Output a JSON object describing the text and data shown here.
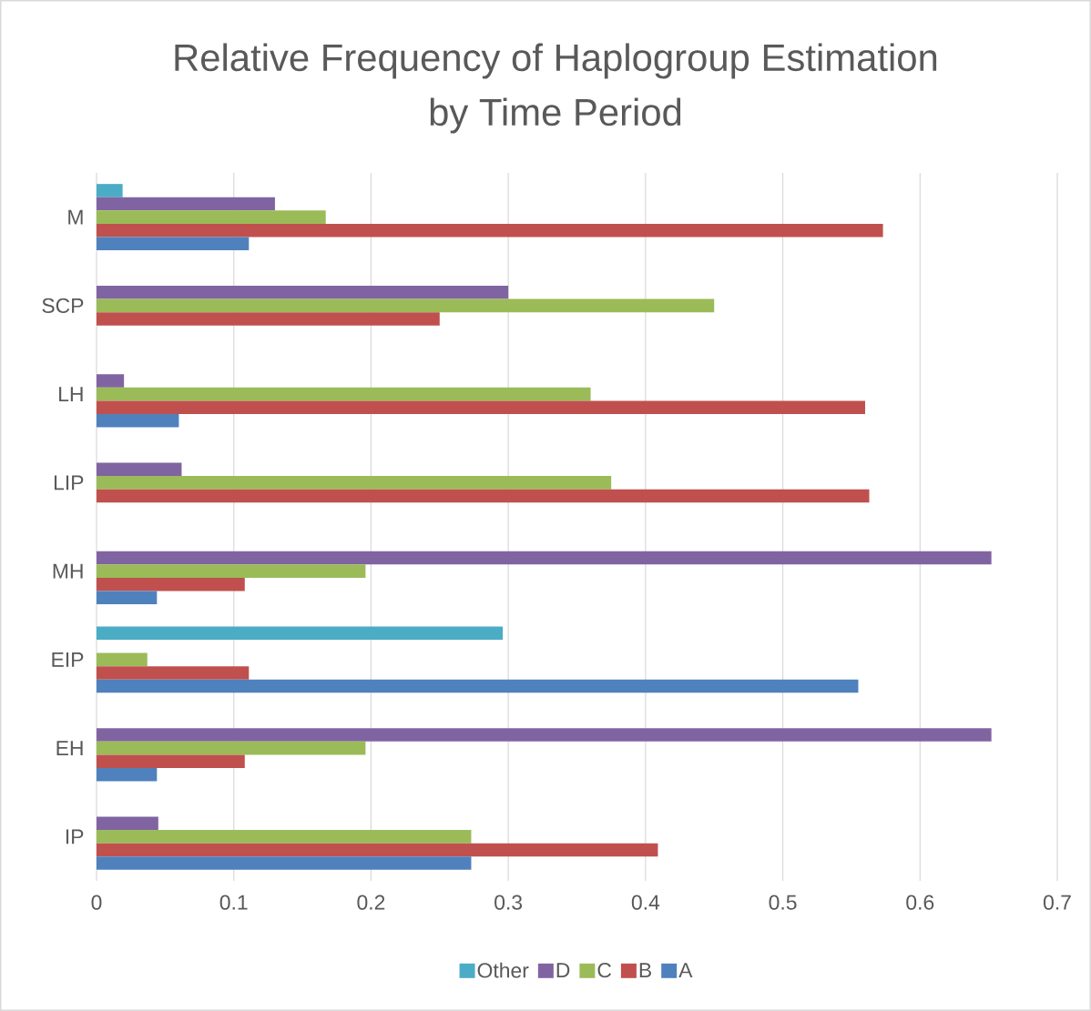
{
  "chart_data": {
    "type": "bar",
    "orientation": "horizontal",
    "title": "Relative Frequency of Haplogroup Estimation\nby Time Period",
    "categories": [
      "M",
      "SCP",
      "LH",
      "LIP",
      "MH",
      "EIP",
      "EH",
      "IP"
    ],
    "series": [
      {
        "name": "Other",
        "color": "#4bacc6",
        "values": [
          0.019,
          null,
          null,
          null,
          null,
          0.296,
          null,
          null
        ]
      },
      {
        "name": "D",
        "color": "#8064a2",
        "values": [
          0.13,
          0.3,
          0.02,
          0.062,
          0.652,
          null,
          0.652,
          0.045
        ]
      },
      {
        "name": "C",
        "color": "#9bbb59",
        "values": [
          0.167,
          0.45,
          0.36,
          0.375,
          0.196,
          0.037,
          0.196,
          0.273
        ]
      },
      {
        "name": "B",
        "color": "#c0504d",
        "values": [
          0.573,
          0.25,
          0.56,
          0.563,
          0.108,
          0.111,
          0.108,
          0.409
        ]
      },
      {
        "name": "A",
        "color": "#4f81bd",
        "values": [
          0.111,
          null,
          0.06,
          null,
          0.044,
          0.555,
          0.044,
          0.273
        ]
      }
    ],
    "xlim": [
      0,
      0.7
    ],
    "xticks": [
      0,
      0.1,
      0.2,
      0.3,
      0.4,
      0.5,
      0.6,
      0.7
    ],
    "grid": "x",
    "legend": "bottom"
  }
}
